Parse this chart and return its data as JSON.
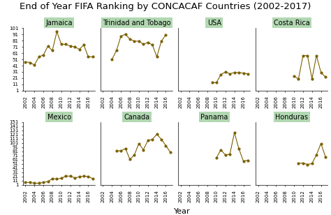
{
  "title": "End of Year FIFA Ranking by CONCACAF Countries (2002-2017)",
  "xlabel": "Year",
  "years": [
    2002,
    2003,
    2004,
    2005,
    2006,
    2007,
    2008,
    2009,
    2010,
    2011,
    2012,
    2013,
    2014,
    2015,
    2016,
    2017
  ],
  "countries_row1": [
    "Jamaica",
    "Trinidad and Tobago",
    "USA",
    "Costa Rica"
  ],
  "countries_row2": [
    "Mexico",
    "Canada",
    "Panama",
    "Honduras"
  ],
  "data": {
    "Jamaica": [
      47,
      46,
      42,
      55,
      58,
      72,
      65,
      95,
      75,
      75,
      72,
      71,
      67,
      74,
      55,
      55
    ],
    "Trinidad and Tobago": [
      null,
      null,
      51,
      65,
      88,
      91,
      83,
      80,
      80,
      75,
      78,
      74,
      55,
      80,
      90,
      null
    ],
    "USA": [
      null,
      null,
      null,
      null,
      null,
      null,
      null,
      14,
      14,
      27,
      31,
      28,
      30,
      30,
      29,
      28
    ],
    "Costa Rica": [
      null,
      null,
      null,
      null,
      null,
      null,
      null,
      null,
      24,
      20,
      57,
      57,
      20,
      57,
      30,
      23
    ],
    "Mexico": [
      7,
      7,
      5,
      5,
      7,
      9,
      16,
      15,
      17,
      22,
      22,
      18,
      20,
      22,
      21,
      16
    ],
    "Canada": [
      null,
      null,
      null,
      83,
      82,
      88,
      62,
      73,
      100,
      85,
      107,
      110,
      122,
      110,
      95,
      79
    ],
    "Panama": [
      null,
      null,
      null,
      null,
      null,
      null,
      null,
      null,
      66,
      85,
      72,
      75,
      126,
      87,
      58,
      60
    ],
    "Honduras": [
      null,
      null,
      null,
      null,
      null,
      null,
      null,
      null,
      null,
      53,
      53,
      50,
      52,
      73,
      100,
      68
    ]
  },
  "ylim_row1": [
    1,
    101
  ],
  "ylim_row2": [
    1,
    151
  ],
  "yticks_row1": [
    1,
    11,
    21,
    31,
    41,
    51,
    61,
    71,
    81,
    91,
    101
  ],
  "yticks_row2": [
    1,
    11,
    21,
    31,
    41,
    51,
    61,
    71,
    81,
    91,
    101,
    111,
    121,
    131,
    141,
    151
  ],
  "line_color": "#7a6000",
  "marker_color": "#7a6000",
  "panel_bg": "#b2d8b2",
  "plot_bg": "#ffffff",
  "fig_bg": "#ffffff",
  "title_fontsize": 9.5,
  "xlabel_fontsize": 8,
  "tick_fontsize": 5,
  "strip_fontsize": 7
}
